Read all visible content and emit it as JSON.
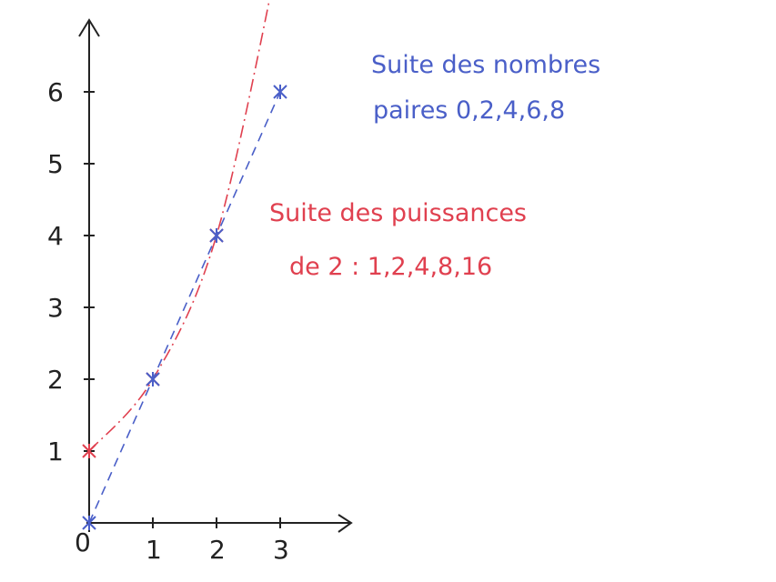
{
  "chart_data": {
    "type": "line",
    "title": "",
    "xlabel": "",
    "ylabel": "",
    "xlim": [
      0,
      3.4
    ],
    "ylim": [
      0,
      6.7
    ],
    "x_ticks": [
      "1",
      "2",
      "3"
    ],
    "y_ticks": [
      "1",
      "2",
      "3",
      "4",
      "5",
      "6"
    ],
    "origin_label": "0",
    "grid": false,
    "series": [
      {
        "name": "Suite des puissances de 2",
        "color": "#e0404f",
        "style": "dash-dot",
        "points": [
          [
            0,
            1
          ],
          [
            1,
            2
          ],
          [
            2,
            4
          ],
          [
            3,
            8
          ]
        ],
        "markers": [
          [
            0,
            1
          ],
          [
            1,
            2
          ],
          [
            2,
            4
          ]
        ]
      },
      {
        "name": "Suite des nombres paires",
        "color": "#4a5fc8",
        "style": "dashed",
        "points": [
          [
            0,
            0
          ],
          [
            1,
            2
          ],
          [
            2,
            4
          ],
          [
            3,
            6
          ]
        ],
        "markers": [
          [
            0,
            0
          ],
          [
            1,
            2
          ],
          [
            2,
            4
          ],
          [
            3,
            6
          ]
        ]
      }
    ],
    "annotations": [
      {
        "id": "pairs",
        "color": "#4a5fc8",
        "lines": [
          "Suite des nombres",
          "paires  0,2,4,6,8"
        ]
      },
      {
        "id": "powers",
        "color": "#e0404f",
        "lines": [
          "Suite des puissances",
          "de 2 :  1,2,4,8,16"
        ]
      }
    ]
  }
}
